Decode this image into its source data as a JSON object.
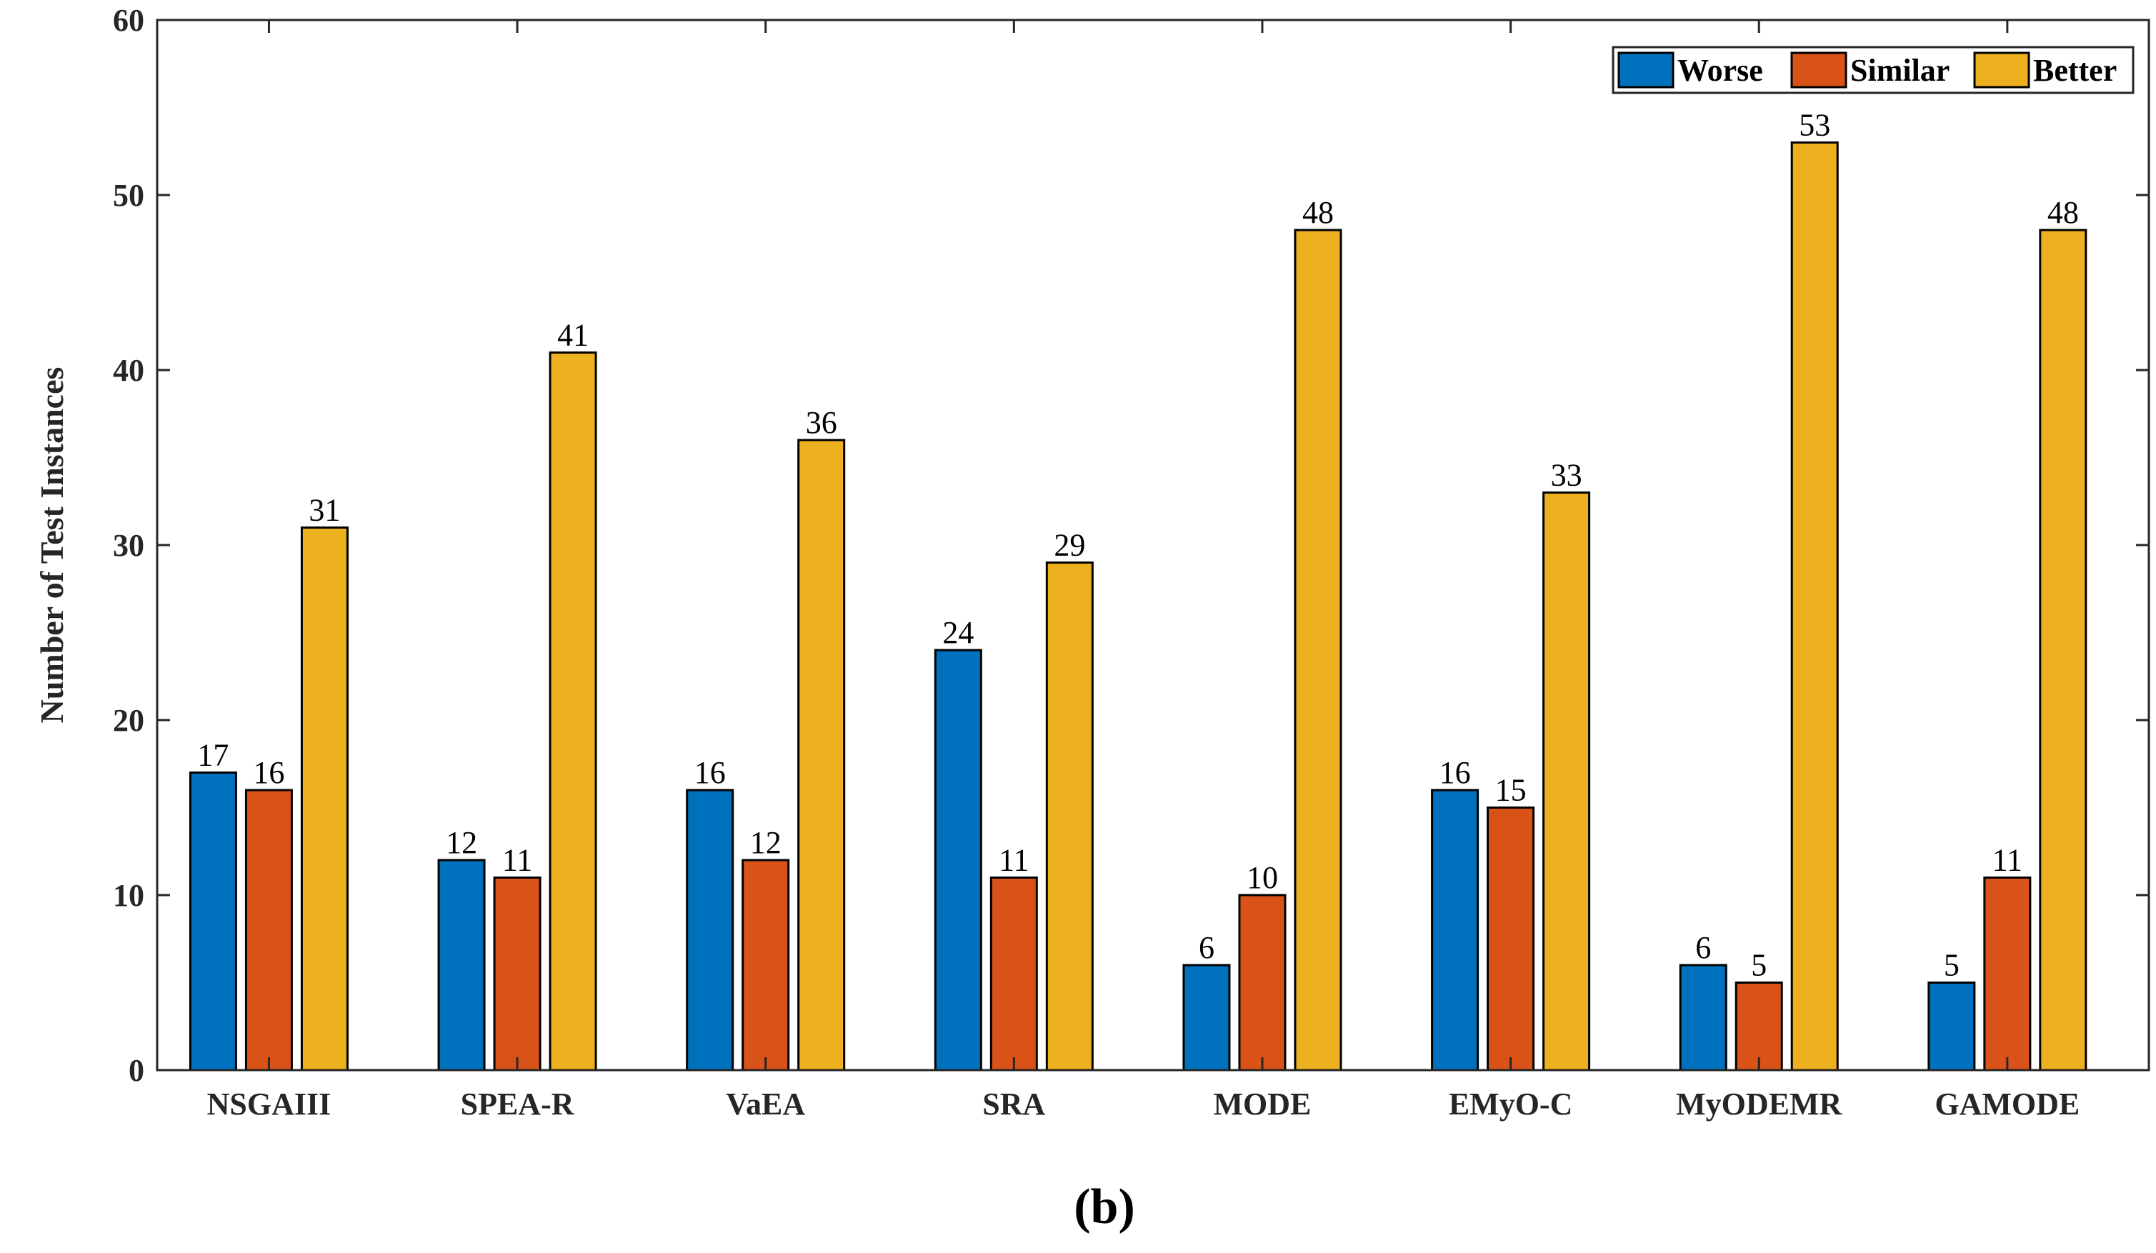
{
  "chart_data": {
    "type": "bar",
    "title": "",
    "xlabel": "",
    "ylabel": "Number of Test Instances",
    "ylim": [
      0,
      60
    ],
    "yticks": [
      0,
      10,
      20,
      30,
      40,
      50,
      60
    ],
    "grid": false,
    "legend_position": "top-right",
    "categories": [
      "NSGAIII",
      "SPEA-R",
      "VaEA",
      "SRA",
      "MODE",
      "EMyO-C",
      "MyODEMR",
      "GAMODE"
    ],
    "series": [
      {
        "name": "Worse",
        "color": "#0072BD",
        "values": [
          17,
          12,
          16,
          24,
          6,
          16,
          6,
          5
        ]
      },
      {
        "name": "Similar",
        "color": "#D95319",
        "values": [
          16,
          11,
          12,
          11,
          10,
          15,
          5,
          11
        ]
      },
      {
        "name": "Better",
        "color": "#EDB120",
        "values": [
          31,
          41,
          36,
          29,
          48,
          33,
          53,
          48
        ]
      }
    ]
  },
  "caption": "(b)"
}
